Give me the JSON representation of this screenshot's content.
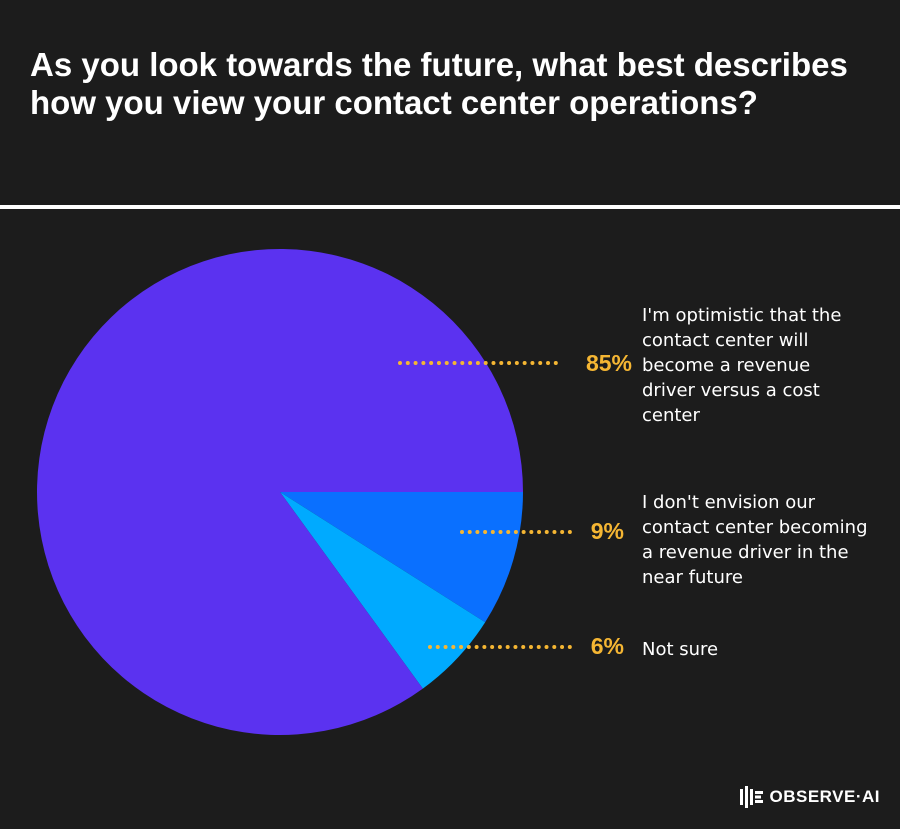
{
  "title": "As you look towards the future, what best describes how you view your contact center operations?",
  "chart_data": {
    "type": "pie",
    "slices": [
      {
        "label": "I'm optimistic that the contact center will become a revenue driver versus a cost center",
        "value": 85,
        "display": "85%",
        "color": "#5b32f0"
      },
      {
        "label": "I don't envision our contact center becoming a revenue driver in the near future",
        "value": 9,
        "display": "9%",
        "color": "#0a70ff"
      },
      {
        "label": "Not sure",
        "value": 6,
        "display": "6%",
        "color": "#00aaff"
      }
    ]
  },
  "brand": {
    "name": "OBSERVE·AI"
  }
}
